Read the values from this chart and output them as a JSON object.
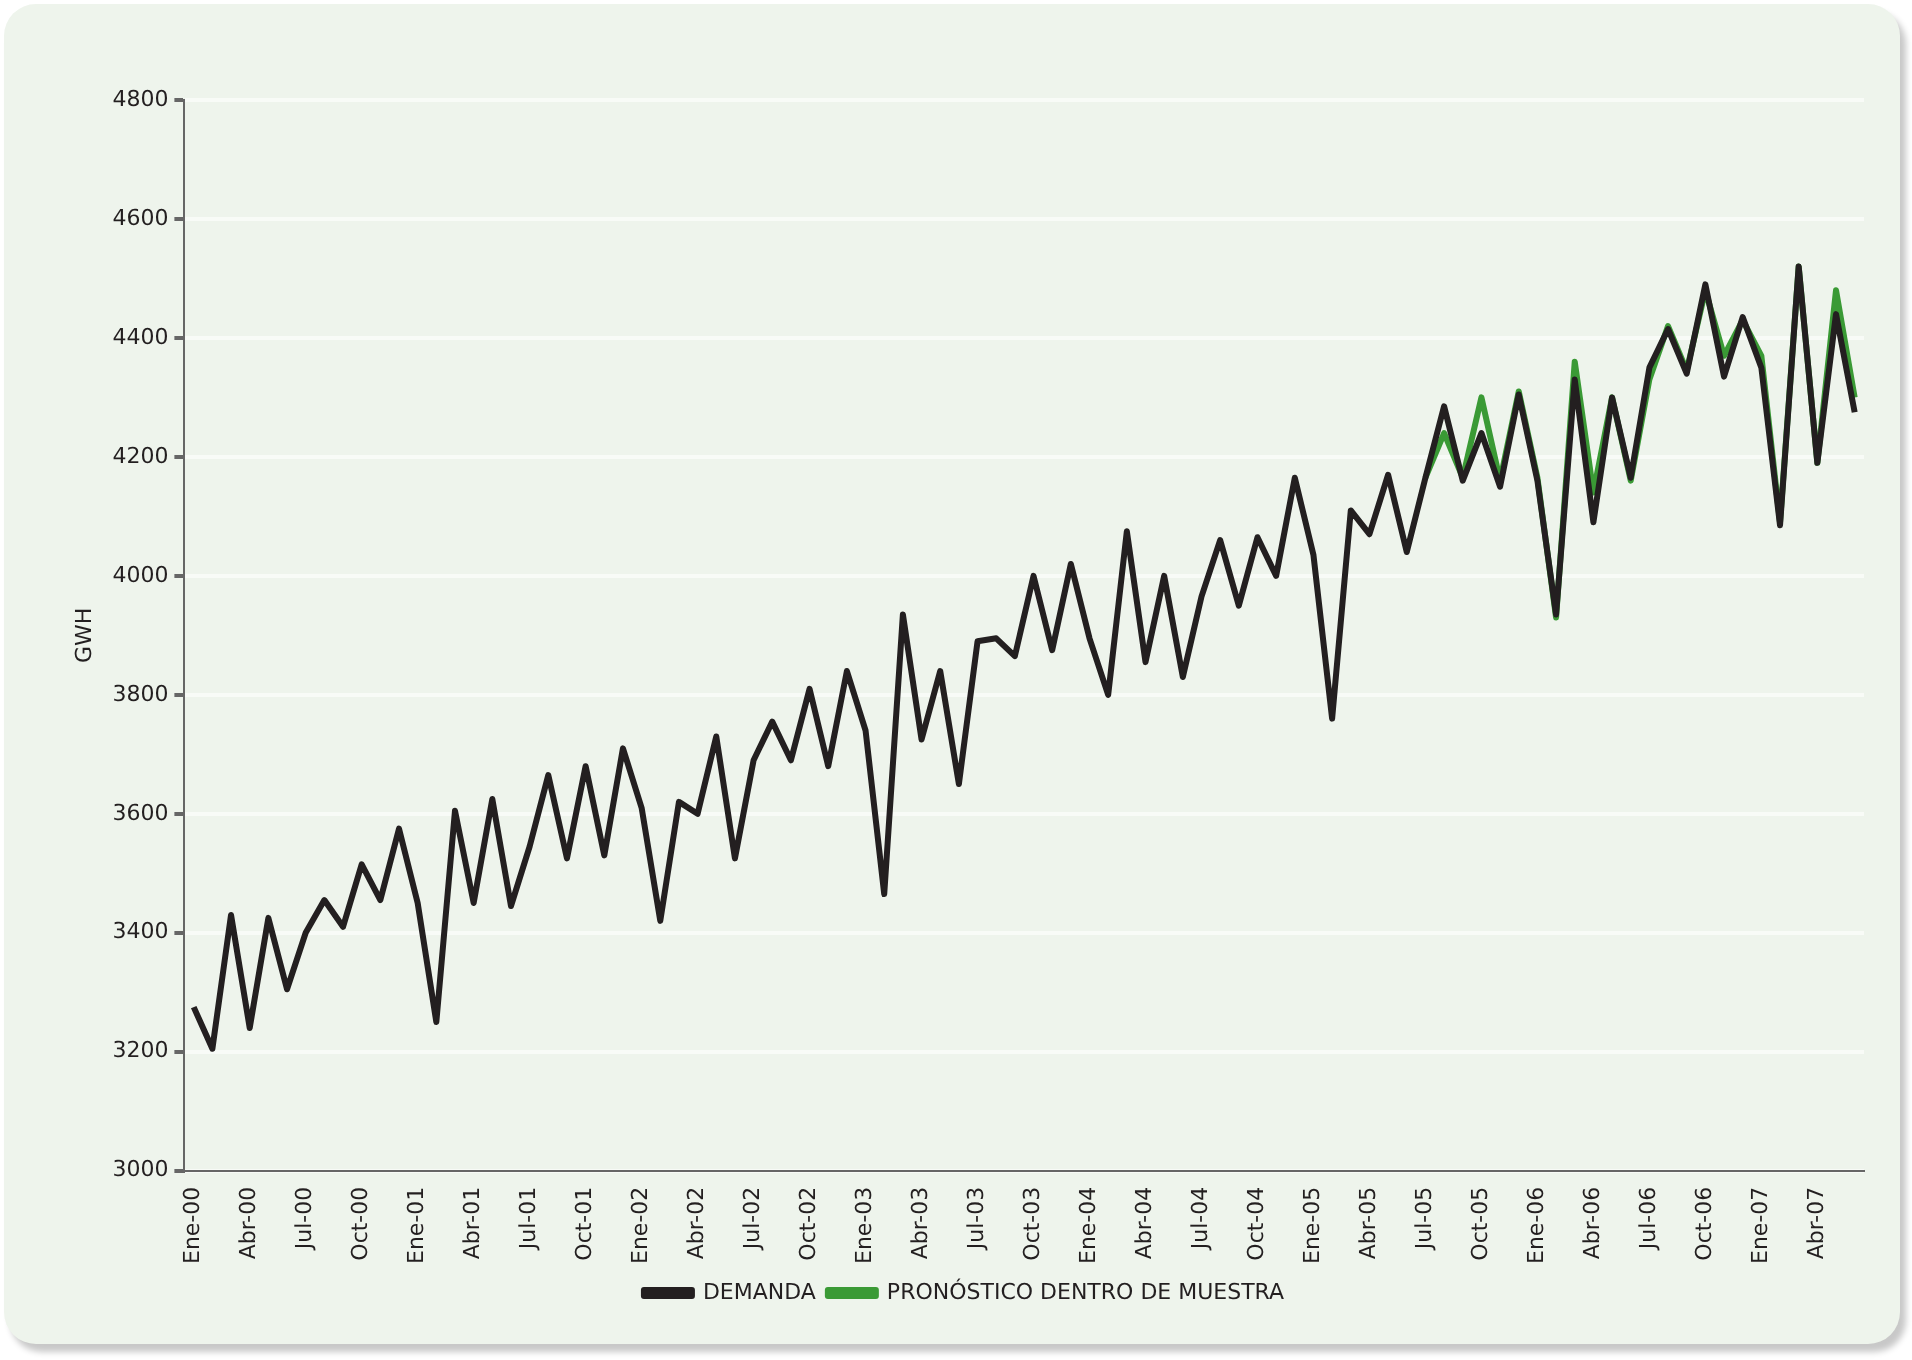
{
  "chart_data": {
    "type": "line",
    "ylabel": "GWH",
    "categories": [
      "Ene-00",
      null,
      null,
      "Abr-00",
      null,
      null,
      "Jul-00",
      null,
      null,
      "Oct-00",
      null,
      null,
      "Ene-01",
      null,
      null,
      "Abr-01",
      null,
      null,
      "Jul-01",
      null,
      null,
      "Oct-01",
      null,
      null,
      "Ene-02",
      null,
      null,
      "Abr-02",
      null,
      null,
      "Jul-02",
      null,
      null,
      "Oct-02",
      null,
      null,
      "Ene-03",
      null,
      null,
      "Abr-03",
      null,
      null,
      "Jul-03",
      null,
      null,
      "Oct-03",
      null,
      null,
      "Ene-04",
      null,
      null,
      "Abr-04",
      null,
      null,
      "Jul-04",
      null,
      null,
      "Oct-04",
      null,
      null,
      "Ene-05",
      null,
      null,
      "Abr-05",
      null,
      null,
      "Jul-05",
      null,
      null,
      "Oct-05",
      null,
      null,
      "Ene-06",
      null,
      null,
      "Abr-06",
      null,
      null,
      "Jul-06",
      null,
      null,
      "Oct-06",
      null,
      null,
      "Ene-07",
      null,
      null,
      "Abr-07",
      null,
      null
    ],
    "series": [
      {
        "name": "DEMANDA",
        "color": "#231f20",
        "values": [
          3275,
          3205,
          3430,
          3240,
          3425,
          3305,
          3400,
          3455,
          3410,
          3515,
          3455,
          3575,
          3450,
          3250,
          3605,
          3450,
          3625,
          3445,
          3545,
          3665,
          3525,
          3680,
          3530,
          3710,
          3610,
          3420,
          3620,
          3600,
          3730,
          3525,
          3690,
          3755,
          3690,
          3810,
          3680,
          3840,
          3740,
          3465,
          3935,
          3725,
          3840,
          3650,
          3890,
          3895,
          3865,
          4000,
          3875,
          4020,
          3895,
          3800,
          4075,
          3855,
          4000,
          3830,
          3965,
          4060,
          3950,
          4065,
          4000,
          4165,
          4035,
          3760,
          4110,
          4070,
          4170,
          4040,
          4165,
          4285,
          4160,
          4240,
          4150,
          4305,
          4160,
          3935,
          4330,
          4090,
          4300,
          4165,
          4350,
          4415,
          4340,
          4490,
          4335,
          4435,
          4350,
          4085,
          4520,
          4190,
          4440,
          4275
        ]
      },
      {
        "name": "PRONÓSTICO DENTRO DE MUESTRA",
        "color": "#3a9a35",
        "values": [
          null,
          null,
          null,
          null,
          null,
          null,
          null,
          null,
          null,
          null,
          null,
          null,
          null,
          null,
          null,
          null,
          null,
          null,
          null,
          null,
          null,
          null,
          null,
          null,
          null,
          null,
          null,
          null,
          null,
          null,
          null,
          null,
          null,
          null,
          null,
          null,
          null,
          null,
          null,
          null,
          null,
          null,
          null,
          null,
          null,
          null,
          null,
          null,
          null,
          null,
          null,
          null,
          null,
          null,
          null,
          null,
          null,
          null,
          null,
          null,
          null,
          null,
          null,
          null,
          null,
          null,
          4165,
          4240,
          4165,
          4300,
          4160,
          4310,
          4165,
          3930,
          4360,
          4140,
          4300,
          4160,
          4330,
          4420,
          4345,
          4480,
          4370,
          4430,
          4370,
          4090,
          4520,
          4190,
          4480,
          4300
        ]
      }
    ],
    "ylim": [
      3000,
      4800
    ],
    "yticks": [
      3000,
      3200,
      3400,
      3600,
      3800,
      4000,
      4200,
      4400,
      4600,
      4800
    ],
    "grid": "y",
    "legend": "bottom",
    "marker": "none",
    "line_style": "solid"
  }
}
